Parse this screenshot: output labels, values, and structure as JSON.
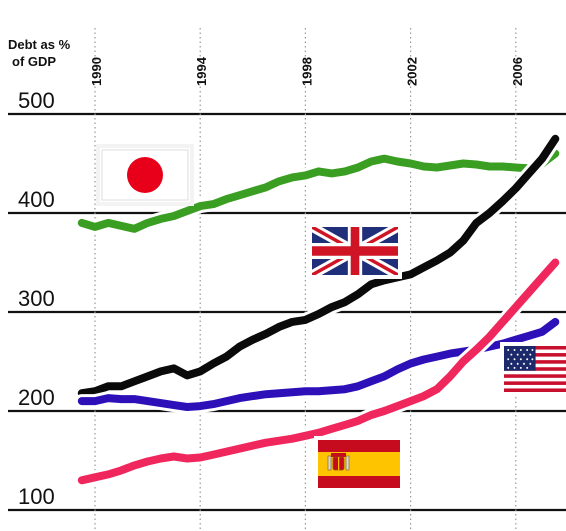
{
  "chart_data": {
    "type": "line",
    "ylabel": [
      "Debt as %",
      "of GDP"
    ],
    "y_ticks": [
      100,
      200,
      300,
      400,
      500
    ],
    "x_ticks": [
      "1990",
      "1994",
      "1998",
      "2002",
      "2006"
    ],
    "xlim": [
      1986.6,
      2007.6
    ],
    "ylim": [
      85,
      540
    ],
    "grid": true,
    "series": [
      {
        "id": "japan",
        "flag": "japan-flag",
        "color": "#3a9e22",
        "points": [
          [
            1989.5,
            390
          ],
          [
            1990.0,
            386
          ],
          [
            1990.5,
            390
          ],
          [
            1991.0,
            387
          ],
          [
            1991.5,
            384
          ],
          [
            1992.0,
            390
          ],
          [
            1992.5,
            394
          ],
          [
            1993.0,
            397
          ],
          [
            1993.5,
            402
          ],
          [
            1994.0,
            407
          ],
          [
            1994.5,
            409
          ],
          [
            1995.0,
            414
          ],
          [
            1995.5,
            418
          ],
          [
            1996.0,
            422
          ],
          [
            1996.5,
            426
          ],
          [
            1997.0,
            432
          ],
          [
            1997.5,
            436
          ],
          [
            1998.0,
            438
          ],
          [
            1998.5,
            442
          ],
          [
            1999.0,
            440
          ],
          [
            1999.5,
            442
          ],
          [
            2000.0,
            446
          ],
          [
            2000.5,
            452
          ],
          [
            2001.0,
            455
          ],
          [
            2001.5,
            452
          ],
          [
            2002.0,
            450
          ],
          [
            2002.5,
            447
          ],
          [
            2003.0,
            446
          ],
          [
            2003.5,
            448
          ],
          [
            2004.0,
            450
          ],
          [
            2004.5,
            449
          ],
          [
            2005.0,
            447
          ],
          [
            2005.5,
            447
          ],
          [
            2006.0,
            446
          ],
          [
            2006.5,
            445
          ],
          [
            2007.0,
            450
          ],
          [
            2007.5,
            460
          ]
        ]
      },
      {
        "id": "uk",
        "flag": "uk-flag",
        "color": "#0a0a0a",
        "points": [
          [
            1989.5,
            218
          ],
          [
            1990.0,
            220
          ],
          [
            1990.5,
            225
          ],
          [
            1991.0,
            225
          ],
          [
            1991.5,
            230
          ],
          [
            1992.0,
            235
          ],
          [
            1992.5,
            240
          ],
          [
            1993.0,
            243
          ],
          [
            1993.5,
            236
          ],
          [
            1994.0,
            240
          ],
          [
            1994.5,
            248
          ],
          [
            1995.0,
            255
          ],
          [
            1995.5,
            265
          ],
          [
            1996.0,
            272
          ],
          [
            1996.5,
            278
          ],
          [
            1997.0,
            285
          ],
          [
            1997.5,
            290
          ],
          [
            1998.0,
            292
          ],
          [
            1998.5,
            298
          ],
          [
            1999.0,
            305
          ],
          [
            1999.5,
            310
          ],
          [
            2000.0,
            318
          ],
          [
            2000.5,
            328
          ],
          [
            2001.0,
            332
          ],
          [
            2001.5,
            335
          ],
          [
            2002.0,
            338
          ],
          [
            2002.5,
            345
          ],
          [
            2003.0,
            352
          ],
          [
            2003.5,
            360
          ],
          [
            2004.0,
            372
          ],
          [
            2004.5,
            390
          ],
          [
            2005.0,
            400
          ],
          [
            2005.5,
            412
          ],
          [
            2006.0,
            425
          ],
          [
            2006.5,
            440
          ],
          [
            2007.0,
            455
          ],
          [
            2007.5,
            475
          ]
        ]
      },
      {
        "id": "usa",
        "flag": "usa-flag",
        "color": "#2e10b8",
        "points": [
          [
            1989.5,
            210
          ],
          [
            1990.0,
            210
          ],
          [
            1990.5,
            213
          ],
          [
            1991.0,
            212
          ],
          [
            1991.5,
            212
          ],
          [
            1992.0,
            210
          ],
          [
            1992.5,
            208
          ],
          [
            1993.0,
            206
          ],
          [
            1993.5,
            204
          ],
          [
            1994.0,
            205
          ],
          [
            1994.5,
            207
          ],
          [
            1995.0,
            210
          ],
          [
            1995.5,
            213
          ],
          [
            1996.0,
            215
          ],
          [
            1996.5,
            217
          ],
          [
            1997.0,
            218
          ],
          [
            1997.5,
            219
          ],
          [
            1998.0,
            220
          ],
          [
            1998.5,
            220
          ],
          [
            1999.0,
            221
          ],
          [
            1999.5,
            222
          ],
          [
            2000.0,
            225
          ],
          [
            2000.5,
            230
          ],
          [
            2001.0,
            235
          ],
          [
            2001.5,
            242
          ],
          [
            2002.0,
            248
          ],
          [
            2002.5,
            252
          ],
          [
            2003.0,
            255
          ],
          [
            2003.5,
            258
          ],
          [
            2004.0,
            260
          ],
          [
            2004.5,
            262
          ],
          [
            2005.0,
            265
          ],
          [
            2005.5,
            268
          ],
          [
            2006.0,
            272
          ],
          [
            2006.5,
            276
          ],
          [
            2007.0,
            280
          ],
          [
            2007.5,
            290
          ]
        ]
      },
      {
        "id": "spain",
        "flag": "spain-flag",
        "color": "#f0275c",
        "points": [
          [
            1989.5,
            130
          ],
          [
            1990.0,
            133
          ],
          [
            1990.5,
            136
          ],
          [
            1991.0,
            140
          ],
          [
            1991.5,
            145
          ],
          [
            1992.0,
            149
          ],
          [
            1992.5,
            152
          ],
          [
            1993.0,
            154
          ],
          [
            1993.5,
            152
          ],
          [
            1994.0,
            153
          ],
          [
            1994.5,
            156
          ],
          [
            1995.0,
            159
          ],
          [
            1995.5,
            162
          ],
          [
            1996.0,
            165
          ],
          [
            1996.5,
            168
          ],
          [
            1997.0,
            170
          ],
          [
            1997.5,
            172
          ],
          [
            1998.0,
            175
          ],
          [
            1998.5,
            178
          ],
          [
            1999.0,
            182
          ],
          [
            1999.5,
            186
          ],
          [
            2000.0,
            190
          ],
          [
            2000.5,
            196
          ],
          [
            2001.0,
            200
          ],
          [
            2001.5,
            205
          ],
          [
            2002.0,
            210
          ],
          [
            2002.5,
            215
          ],
          [
            2003.0,
            222
          ],
          [
            2003.5,
            235
          ],
          [
            2004.0,
            250
          ],
          [
            2004.5,
            262
          ],
          [
            2005.0,
            275
          ],
          [
            2005.5,
            290
          ],
          [
            2006.0,
            305
          ],
          [
            2006.5,
            320
          ],
          [
            2007.0,
            335
          ],
          [
            2007.5,
            350
          ]
        ]
      }
    ]
  }
}
